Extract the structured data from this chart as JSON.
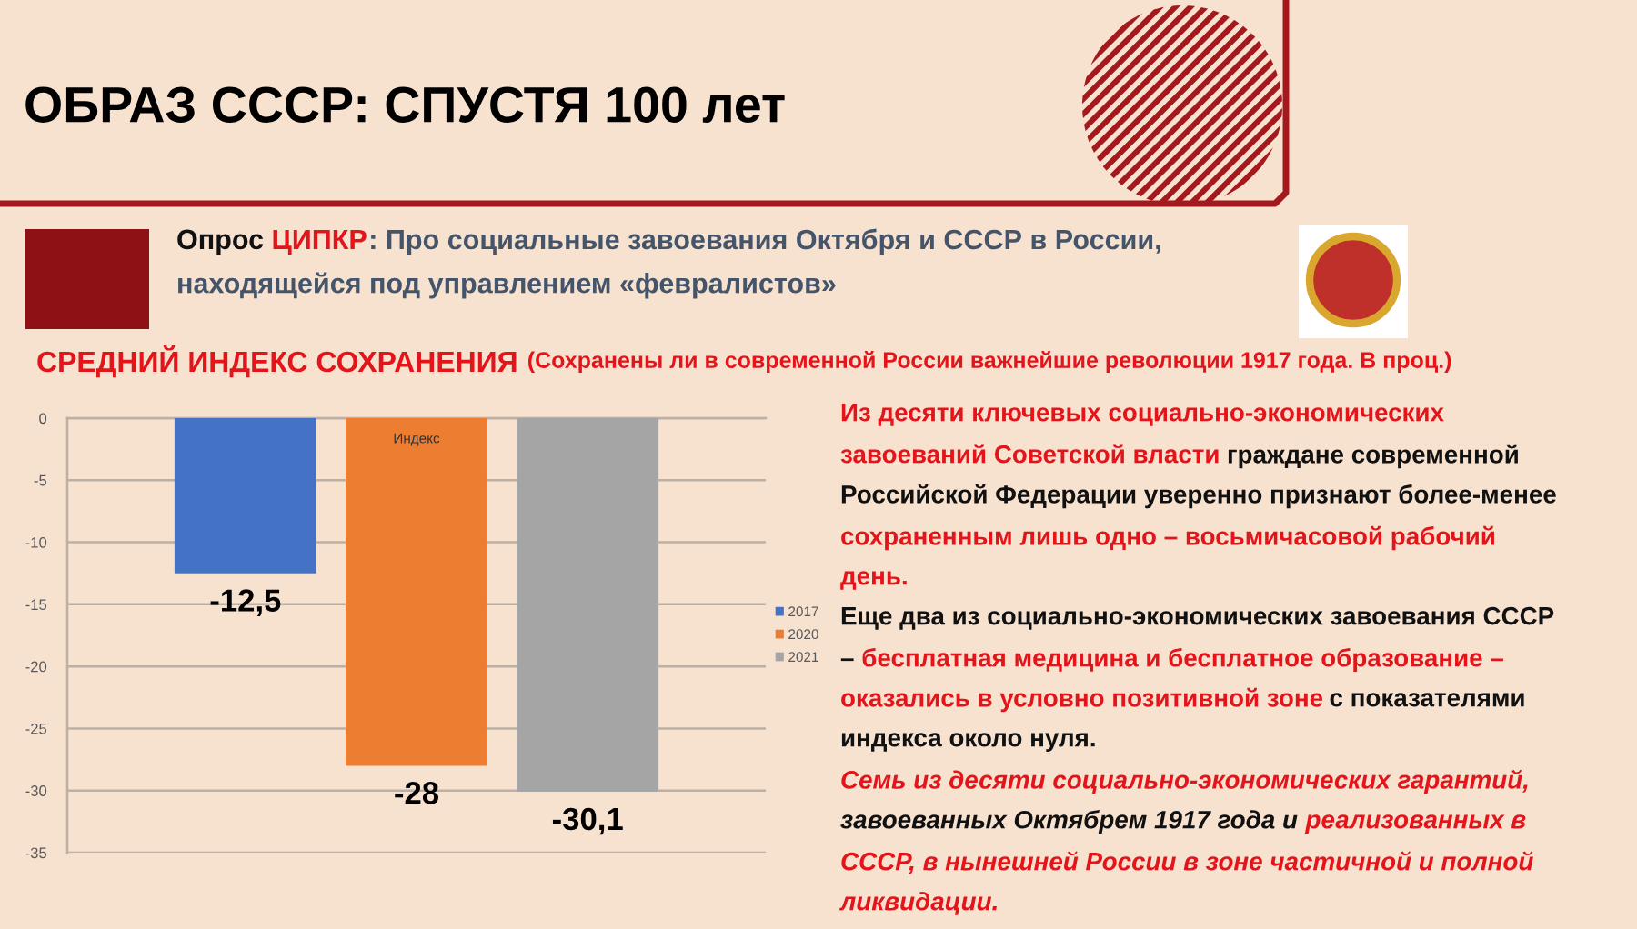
{
  "chart_data": {
    "type": "bar",
    "title": "ОБРАЗ СССР: СПУСТЯ 100 лет",
    "subtitle": "СРЕДНИЙ ИНДЕКС СОХРАНЕНИЯ",
    "categories": [
      "Индекс"
    ],
    "series": [
      {
        "name": "2017",
        "color": "#4472c4",
        "values": [
          -12.5
        ],
        "value_labels": [
          "-12,5"
        ]
      },
      {
        "name": "2020",
        "color": "#ed7d31",
        "values": [
          -28
        ],
        "value_labels": [
          "-28"
        ]
      },
      {
        "name": "2021",
        "color": "#a5a5a5",
        "values": [
          -30.1
        ],
        "value_labels": [
          "-30,1"
        ]
      }
    ],
    "ylim": [
      -35,
      0
    ],
    "yticks": [
      -35,
      -30,
      -25,
      -20,
      -15,
      -10,
      -5,
      0
    ],
    "grid": "y",
    "legend": "right",
    "annotations": [
      "Опрос",
      "ЦИПКР",
      ": Про социальные завоевания Октября и СССР в России,",
      "находящейся под управлением «февралистов»",
      "(Сохранены ли в современной России важнейшие революции 1917 года. В проц.)",
      "Из десяти ключевых социально-экономических",
      "завоеваний Советской власти",
      "граждане современной",
      "Российской Федерации уверенно признают более-менее",
      "сохраненным лишь одно – восьмичасовой рабочий",
      "день.",
      "Еще два из социально-экономических завоевания СССР",
      "–",
      "бесплатная медицина и бесплатное образование –",
      "оказались в условно позитивной зоне",
      "с показателями",
      "индекса около нуля.",
      "Семь из десяти социально-экономических гарантий,",
      "завоеванных Октябрем 1917 года и",
      "реализованных в",
      "СССР, в нынешней России в зоне частичной и полной",
      "ликвидации."
    ]
  }
}
